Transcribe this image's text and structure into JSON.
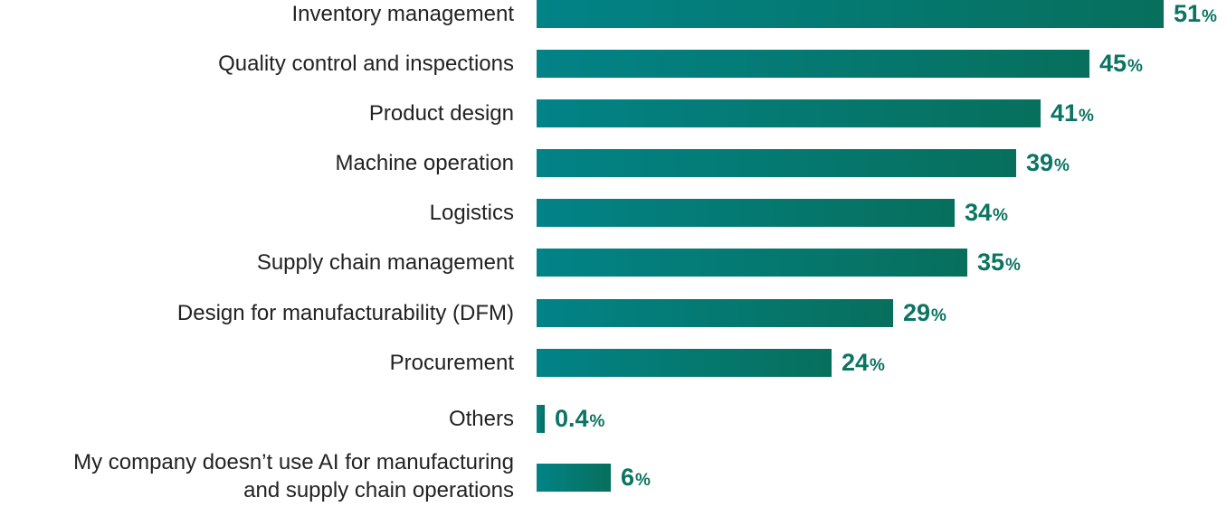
{
  "chart_data": {
    "type": "bar",
    "orientation": "horizontal",
    "title": "",
    "xlabel": "",
    "ylabel": "",
    "unit": "%",
    "categories": [
      [
        "Inventory management"
      ],
      [
        "Quality control and inspections"
      ],
      [
        "Product design"
      ],
      [
        "Machine operation"
      ],
      [
        "Logistics"
      ],
      [
        "Supply chain management"
      ],
      [
        "Design for manufacturability (DFM)"
      ],
      [
        "Procurement"
      ],
      [
        "Others"
      ],
      [
        "My company doesn’t use AI for manufacturing",
        "and supply chain operations"
      ]
    ],
    "values": [
      51,
      45,
      41,
      39,
      34,
      35,
      29,
      24,
      0.4,
      6
    ],
    "value_labels": [
      "51",
      "45",
      "41",
      "39",
      "34",
      "35",
      "29",
      "24",
      "0.4",
      "6"
    ],
    "xlim": [
      0,
      51
    ],
    "grid": false,
    "legend": "none",
    "colors": {
      "bar_start": "#028387",
      "bar_end": "#076f5c",
      "value_text": "#0b7462",
      "label_text": "#222222"
    }
  }
}
